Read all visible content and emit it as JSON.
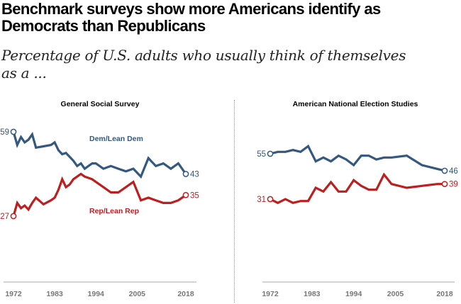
{
  "title": "Benchmark surveys show more Americans identify as Democrats than Republicans",
  "title_line1": "Benchmark surveys show more Americans identify as",
  "title_line2": "Democrats than Republicans",
  "subtitle_line1": "Percentage of U.S. adults who usually think of themselves",
  "subtitle_line2": "as a ...",
  "colors": {
    "dem": "#34587f",
    "rep": "#bd1e1e",
    "axis": "#aaaaaa",
    "tick": "#777777"
  },
  "chart_data": [
    {
      "type": "line",
      "title": "General Social Survey",
      "xlabel": "",
      "ylabel": "",
      "xlim": [
        1972,
        2018
      ],
      "ylim": [
        20,
        65
      ],
      "x_ticks": [
        "1972",
        "1983",
        "1994",
        "2005",
        "2018"
      ],
      "grid": false,
      "series": [
        {
          "name": "Dem/Lean Dem",
          "color": "#34587f",
          "x": [
            1972,
            1973,
            1974,
            1975,
            1976,
            1977,
            1978,
            1980,
            1982,
            1983,
            1984,
            1985,
            1986,
            1987,
            1988,
            1989,
            1990,
            1991,
            1993,
            1994,
            1996,
            1998,
            2000,
            2002,
            2004,
            2006,
            2008,
            2010,
            2012,
            2014,
            2016,
            2018
          ],
          "values": [
            59,
            54,
            57,
            55,
            56,
            58,
            53,
            53.5,
            54,
            55,
            52,
            50.5,
            51,
            49.5,
            48,
            46,
            47,
            45,
            47,
            47,
            45,
            46,
            45,
            44,
            45,
            42,
            49,
            46,
            47,
            45,
            47,
            43
          ],
          "end_labels": {
            "start": "59",
            "end": "43"
          }
        },
        {
          "name": "Rep/Lean Rep",
          "color": "#bd1e1e",
          "x": [
            1972,
            1973,
            1974,
            1975,
            1976,
            1977,
            1978,
            1980,
            1982,
            1983,
            1984,
            1985,
            1986,
            1987,
            1988,
            1989,
            1990,
            1991,
            1993,
            1994,
            1996,
            1998,
            2000,
            2002,
            2004,
            2006,
            2008,
            2010,
            2012,
            2014,
            2016,
            2018
          ],
          "values": [
            27,
            32,
            30,
            31,
            29.5,
            32,
            34,
            31.5,
            33,
            34,
            37,
            41,
            38,
            39,
            41,
            42,
            43,
            42,
            41,
            40,
            38,
            36,
            36,
            38,
            40,
            33,
            34,
            33,
            32,
            32,
            33,
            35
          ],
          "end_labels": {
            "start": "27",
            "end": "35"
          }
        }
      ],
      "annotations": [
        "Dem/Lean Dem",
        "Rep/Lean Rep"
      ]
    },
    {
      "type": "line",
      "title": "American National Election Studies",
      "xlabel": "",
      "ylabel": "",
      "xlim": [
        1972,
        2018
      ],
      "ylim": [
        20,
        65
      ],
      "x_ticks": [
        "1972",
        "1983",
        "1994",
        "2005",
        "2018"
      ],
      "grid": false,
      "series": [
        {
          "name": "Dem/Lean Dem",
          "color": "#34587f",
          "x": [
            1972,
            1974,
            1976,
            1978,
            1980,
            1982,
            1984,
            1986,
            1988,
            1990,
            1992,
            1994,
            1996,
            1998,
            2000,
            2002,
            2004,
            2008,
            2012,
            2016,
            2018
          ],
          "values": [
            55,
            56,
            56,
            57,
            56,
            59,
            51,
            53,
            51,
            54,
            52,
            49,
            54,
            54,
            52,
            53,
            53,
            54,
            49,
            47,
            46
          ],
          "end_labels": {
            "start": "55",
            "end": "46"
          }
        },
        {
          "name": "Rep/Lean Rep",
          "color": "#bd1e1e",
          "x": [
            1972,
            1974,
            1976,
            1978,
            1980,
            1982,
            1984,
            1986,
            1988,
            1990,
            1992,
            1994,
            1996,
            1998,
            2000,
            2002,
            2004,
            2008,
            2012,
            2016,
            2018
          ],
          "values": [
            31,
            29,
            31,
            29,
            30,
            30,
            37,
            35,
            40,
            35,
            35,
            41,
            38,
            36,
            36,
            44,
            39,
            37,
            38,
            39,
            39
          ],
          "end_labels": {
            "start": "31",
            "end": "39"
          }
        }
      ]
    }
  ]
}
